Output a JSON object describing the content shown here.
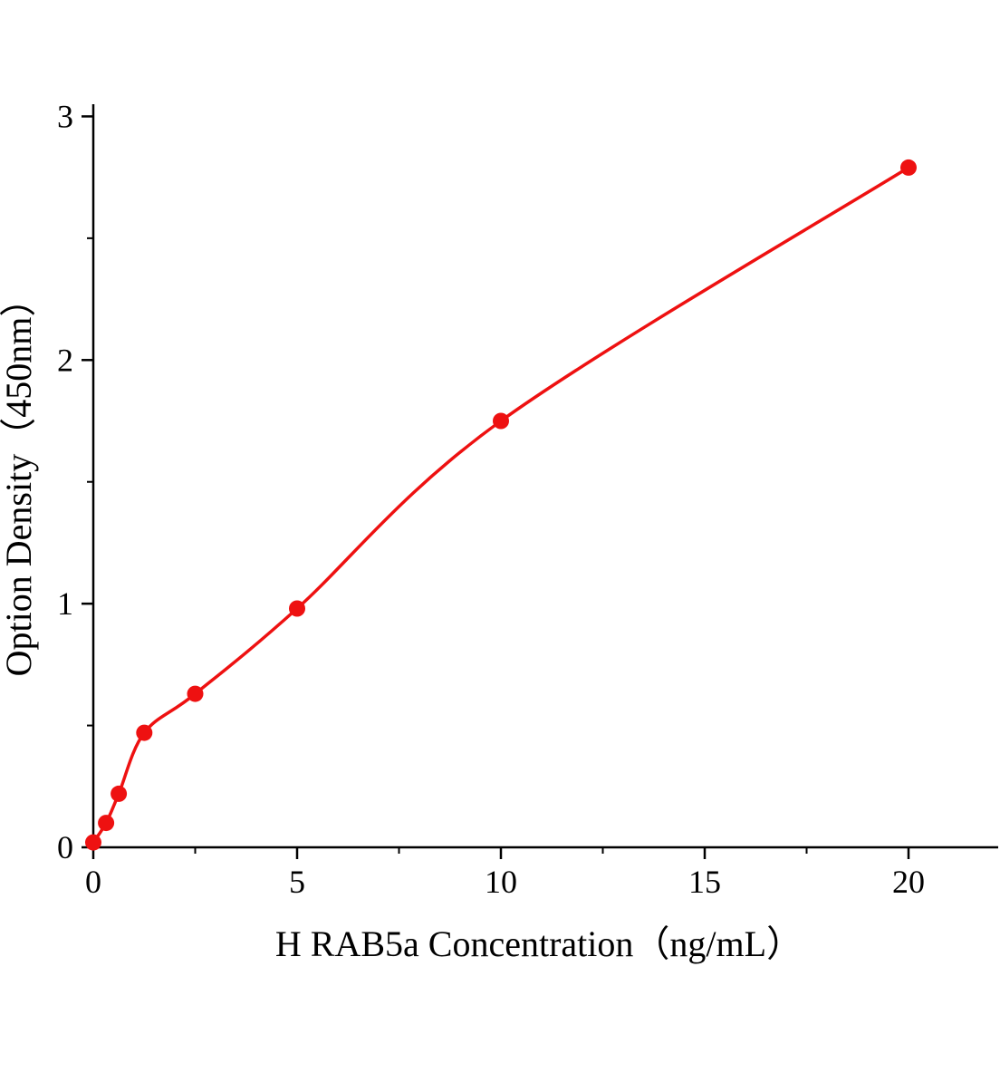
{
  "chart_data": {
    "type": "scatter",
    "title": "",
    "xlabel": "H RAB5a Concentration（ng/mL）",
    "ylabel": "Option Density（450nm）",
    "x": [
      0,
      0.313,
      0.625,
      1.25,
      2.5,
      5,
      10,
      20
    ],
    "y": [
      0.02,
      0.1,
      0.22,
      0.47,
      0.63,
      0.98,
      1.75,
      2.79
    ],
    "x_ticks": [
      0,
      5,
      10,
      15,
      20
    ],
    "y_ticks": [
      0,
      1,
      2,
      3
    ],
    "xlim": [
      0,
      22.2
    ],
    "ylim": [
      0,
      3.05
    ],
    "x_minor_step": 2.5,
    "y_minor_step": 0.5,
    "grid": false,
    "legend": "none",
    "curve": "smooth-fit",
    "point_color": "#ee1111",
    "line_color": "#ee1111",
    "axis_color": "#000000"
  }
}
